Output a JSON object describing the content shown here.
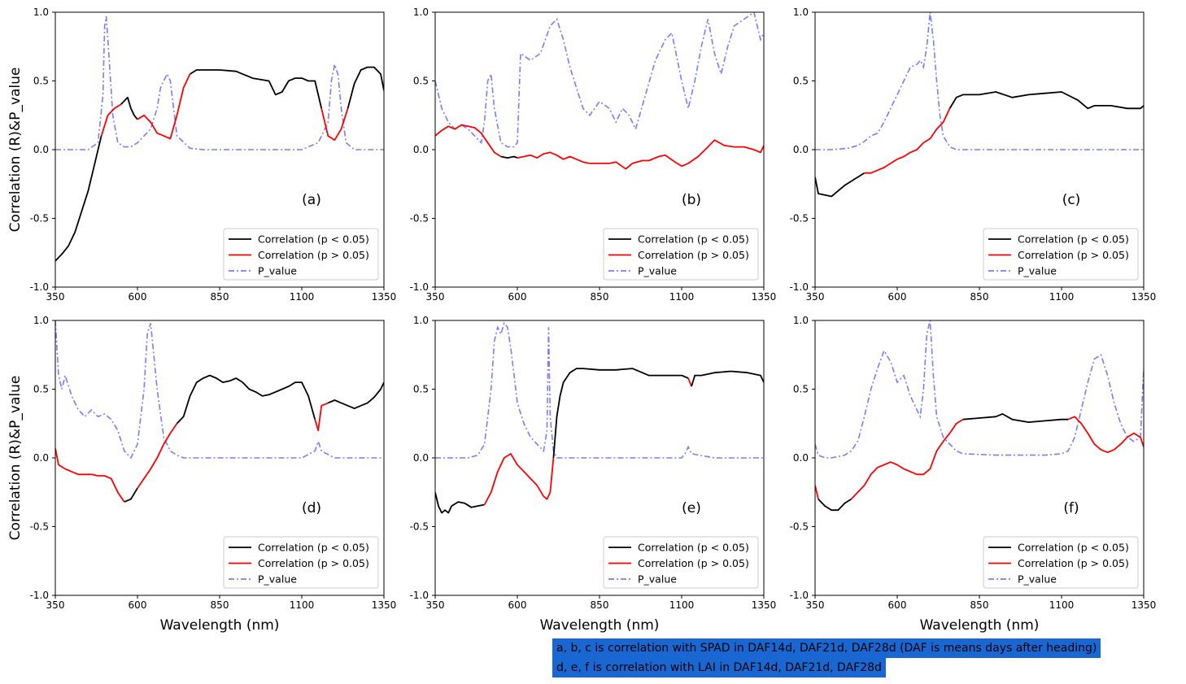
{
  "note": {
    "line1": "a, b, c is correlation with SPAD in DAF14d, DAF21d, DAF28d (DAF is means days after heading)",
    "line2": "d, e, f is correlation with LAI in DAF14d, DAF21d, DAF28d"
  },
  "axes": {
    "ylabel": "Correlation (R)&P_value",
    "xlabel": "Wavelength (nm)",
    "xticks": [
      "350",
      "600",
      "850",
      "1100",
      "1350"
    ],
    "yticks": [
      "1.0",
      "0.5",
      "0.0",
      "-0.5",
      "-1.0"
    ]
  },
  "legend": {
    "sig": "Correlation (p < 0.05)",
    "nonsig": "Correlation (p > 0.05)",
    "pvalue": "P_value"
  },
  "colors": {
    "sig": "#000000",
    "nonsig": "#ff0000",
    "pvalue": "#7b7bff",
    "note_bg": "#1967d2"
  },
  "chart_data": [
    {
      "type": "line",
      "panel": "(a)",
      "xlim": [
        350,
        1350
      ],
      "ylim": [
        -1.0,
        1.0
      ],
      "correlation": {
        "x": [
          350,
          370,
          390,
          410,
          430,
          450,
          470,
          490,
          510,
          530,
          550,
          570,
          580,
          590,
          600,
          620,
          640,
          660,
          680,
          700,
          720,
          740,
          760,
          780,
          800,
          850,
          900,
          950,
          1000,
          1020,
          1040,
          1060,
          1080,
          1100,
          1120,
          1140,
          1160,
          1180,
          1200,
          1220,
          1240,
          1260,
          1280,
          1300,
          1320,
          1340,
          1350
        ],
        "y": [
          -0.81,
          -0.76,
          -0.7,
          -0.6,
          -0.45,
          -0.3,
          -0.1,
          0.1,
          0.25,
          0.3,
          0.33,
          0.38,
          0.3,
          0.25,
          0.22,
          0.25,
          0.2,
          0.12,
          0.1,
          0.08,
          0.25,
          0.45,
          0.55,
          0.58,
          0.58,
          0.58,
          0.57,
          0.52,
          0.5,
          0.4,
          0.42,
          0.5,
          0.52,
          0.52,
          0.5,
          0.5,
          0.3,
          0.1,
          0.07,
          0.15,
          0.3,
          0.48,
          0.58,
          0.6,
          0.6,
          0.55,
          0.43
        ]
      },
      "p_value": {
        "x": [
          350,
          400,
          450,
          480,
          495,
          500,
          505,
          510,
          525,
          540,
          560,
          580,
          600,
          620,
          640,
          660,
          670,
          680,
          690,
          700,
          720,
          760,
          800,
          900,
          1000,
          1100,
          1150,
          1180,
          1190,
          1200,
          1210,
          1220,
          1235,
          1260,
          1300,
          1350
        ],
        "y": [
          0.0,
          0.0,
          0.0,
          0.05,
          0.4,
          0.9,
          0.97,
          0.8,
          0.25,
          0.05,
          0.02,
          0.02,
          0.05,
          0.1,
          0.15,
          0.3,
          0.45,
          0.5,
          0.55,
          0.5,
          0.1,
          0.01,
          0.0,
          0.0,
          0.0,
          0.0,
          0.05,
          0.2,
          0.5,
          0.62,
          0.55,
          0.3,
          0.05,
          0.0,
          0.0,
          0.0
        ]
      }
    },
    {
      "type": "line",
      "panel": "(b)",
      "xlim": [
        350,
        1350
      ],
      "ylim": [
        -1.0,
        1.0
      ],
      "correlation": {
        "x": [
          350,
          370,
          390,
          410,
          430,
          450,
          470,
          490,
          510,
          530,
          550,
          570,
          590,
          600,
          620,
          640,
          660,
          680,
          700,
          720,
          740,
          760,
          780,
          800,
          820,
          850,
          880,
          900,
          930,
          950,
          980,
          1000,
          1030,
          1050,
          1080,
          1100,
          1120,
          1150,
          1180,
          1200,
          1230,
          1260,
          1290,
          1320,
          1340,
          1350
        ],
        "y": [
          0.1,
          0.14,
          0.17,
          0.15,
          0.18,
          0.17,
          0.16,
          0.12,
          0.05,
          -0.02,
          -0.05,
          -0.06,
          -0.05,
          -0.06,
          -0.05,
          -0.04,
          -0.06,
          -0.03,
          -0.02,
          -0.04,
          -0.07,
          -0.05,
          -0.07,
          -0.09,
          -0.1,
          -0.1,
          -0.1,
          -0.09,
          -0.14,
          -0.1,
          -0.08,
          -0.08,
          -0.05,
          -0.04,
          -0.09,
          -0.12,
          -0.1,
          -0.05,
          0.02,
          0.07,
          0.03,
          0.02,
          0.02,
          0.0,
          -0.02,
          0.03
        ]
      },
      "p_value": {
        "x": [
          350,
          370,
          390,
          410,
          430,
          450,
          470,
          490,
          500,
          510,
          520,
          530,
          550,
          570,
          590,
          600,
          610,
          640,
          670,
          700,
          720,
          740,
          760,
          780,
          800,
          820,
          850,
          880,
          900,
          920,
          940,
          960,
          990,
          1020,
          1050,
          1070,
          1100,
          1120,
          1140,
          1160,
          1180,
          1200,
          1220,
          1240,
          1260,
          1290,
          1320,
          1340,
          1350
        ],
        "y": [
          0.5,
          0.3,
          0.2,
          0.15,
          0.18,
          0.15,
          0.1,
          0.05,
          0.2,
          0.5,
          0.55,
          0.3,
          0.05,
          0.02,
          0.02,
          0.05,
          0.7,
          0.65,
          0.7,
          0.9,
          0.95,
          0.8,
          0.6,
          0.45,
          0.3,
          0.25,
          0.35,
          0.3,
          0.2,
          0.3,
          0.25,
          0.15,
          0.4,
          0.65,
          0.8,
          0.85,
          0.5,
          0.3,
          0.5,
          0.75,
          0.95,
          0.7,
          0.55,
          0.75,
          0.9,
          0.95,
          1.0,
          0.8,
          0.85
        ]
      }
    },
    {
      "type": "line",
      "panel": "(c)",
      "xlim": [
        350,
        1350
      ],
      "ylim": [
        -1.0,
        1.0
      ],
      "correlation": {
        "x": [
          350,
          360,
          380,
          400,
          420,
          440,
          460,
          480,
          500,
          520,
          540,
          560,
          580,
          600,
          620,
          640,
          660,
          680,
          700,
          720,
          740,
          760,
          780,
          800,
          850,
          900,
          950,
          1000,
          1050,
          1100,
          1150,
          1180,
          1200,
          1250,
          1300,
          1340,
          1350
        ],
        "y": [
          -0.2,
          -0.32,
          -0.33,
          -0.34,
          -0.3,
          -0.26,
          -0.23,
          -0.2,
          -0.17,
          -0.17,
          -0.15,
          -0.13,
          -0.1,
          -0.07,
          -0.05,
          -0.02,
          -0.0,
          0.05,
          0.08,
          0.15,
          0.2,
          0.3,
          0.38,
          0.4,
          0.4,
          0.42,
          0.38,
          0.4,
          0.41,
          0.42,
          0.36,
          0.3,
          0.32,
          0.32,
          0.3,
          0.3,
          0.32
        ]
      },
      "p_value": {
        "x": [
          350,
          400,
          450,
          480,
          500,
          520,
          540,
          560,
          580,
          600,
          620,
          640,
          660,
          670,
          680,
          690,
          700,
          710,
          720,
          730,
          740,
          760,
          780,
          800,
          850,
          900,
          1000,
          1100,
          1200,
          1300,
          1350
        ],
        "y": [
          0.0,
          0.0,
          0.01,
          0.03,
          0.06,
          0.1,
          0.12,
          0.2,
          0.3,
          0.4,
          0.5,
          0.6,
          0.62,
          0.65,
          0.6,
          0.75,
          1.0,
          0.8,
          0.5,
          0.25,
          0.1,
          0.02,
          0.0,
          0.0,
          0.0,
          0.0,
          0.0,
          0.0,
          0.0,
          0.0,
          0.0
        ]
      }
    },
    {
      "type": "line",
      "panel": "(d)",
      "xlim": [
        350,
        1350
      ],
      "ylim": [
        -1.0,
        1.0
      ],
      "correlation": {
        "x": [
          350,
          360,
          380,
          400,
          420,
          440,
          460,
          480,
          500,
          520,
          540,
          560,
          580,
          600,
          620,
          640,
          660,
          680,
          700,
          720,
          740,
          760,
          780,
          800,
          820,
          840,
          860,
          880,
          900,
          920,
          940,
          960,
          980,
          1000,
          1020,
          1040,
          1060,
          1080,
          1100,
          1120,
          1140,
          1150,
          1160,
          1180,
          1200,
          1220,
          1240,
          1260,
          1280,
          1300,
          1320,
          1340,
          1350
        ],
        "y": [
          0.07,
          -0.05,
          -0.08,
          -0.1,
          -0.12,
          -0.12,
          -0.12,
          -0.13,
          -0.13,
          -0.15,
          -0.25,
          -0.32,
          -0.3,
          -0.22,
          -0.15,
          -0.08,
          -0.0,
          0.1,
          0.18,
          0.25,
          0.3,
          0.45,
          0.55,
          0.58,
          0.6,
          0.58,
          0.55,
          0.56,
          0.58,
          0.55,
          0.5,
          0.48,
          0.45,
          0.46,
          0.48,
          0.5,
          0.52,
          0.55,
          0.55,
          0.45,
          0.28,
          0.2,
          0.38,
          0.4,
          0.42,
          0.4,
          0.38,
          0.36,
          0.38,
          0.4,
          0.44,
          0.5,
          0.55
        ]
      },
      "p_value": {
        "x": [
          350,
          360,
          370,
          380,
          400,
          420,
          440,
          460,
          480,
          500,
          520,
          540,
          560,
          580,
          600,
          620,
          630,
          640,
          660,
          680,
          700,
          720,
          740,
          760,
          800,
          900,
          1000,
          1100,
          1140,
          1150,
          1160,
          1200,
          1300,
          1350
        ],
        "y": [
          1.0,
          0.6,
          0.5,
          0.6,
          0.45,
          0.35,
          0.3,
          0.35,
          0.3,
          0.32,
          0.28,
          0.2,
          0.05,
          0.0,
          0.1,
          0.5,
          0.9,
          0.98,
          0.5,
          0.15,
          0.05,
          0.02,
          0.0,
          0.0,
          0.0,
          0.0,
          0.0,
          0.0,
          0.05,
          0.12,
          0.05,
          0.0,
          0.0,
          0.0
        ]
      }
    },
    {
      "type": "line",
      "panel": "(e)",
      "xlim": [
        350,
        1350
      ],
      "ylim": [
        -1.0,
        1.0
      ],
      "correlation": {
        "x": [
          350,
          360,
          370,
          380,
          390,
          400,
          420,
          440,
          460,
          480,
          500,
          520,
          540,
          560,
          580,
          600,
          620,
          640,
          660,
          680,
          690,
          700,
          710,
          720,
          730,
          740,
          760,
          780,
          800,
          850,
          900,
          950,
          1000,
          1050,
          1100,
          1120,
          1130,
          1140,
          1160,
          1200,
          1250,
          1300,
          1340,
          1350
        ],
        "y": [
          -0.25,
          -0.35,
          -0.4,
          -0.38,
          -0.4,
          -0.35,
          -0.32,
          -0.33,
          -0.36,
          -0.35,
          -0.34,
          -0.25,
          -0.1,
          0.0,
          0.03,
          -0.05,
          -0.1,
          -0.15,
          -0.2,
          -0.28,
          -0.3,
          -0.25,
          0.0,
          0.3,
          0.45,
          0.55,
          0.62,
          0.65,
          0.65,
          0.64,
          0.64,
          0.65,
          0.6,
          0.6,
          0.6,
          0.58,
          0.52,
          0.6,
          0.6,
          0.62,
          0.63,
          0.62,
          0.6,
          0.55
        ]
      },
      "p_value": {
        "x": [
          350,
          400,
          450,
          480,
          500,
          520,
          530,
          540,
          550,
          560,
          570,
          580,
          590,
          600,
          620,
          640,
          660,
          680,
          690,
          695,
          700,
          710,
          720,
          740,
          800,
          900,
          1000,
          1100,
          1110,
          1120,
          1130,
          1200,
          1300,
          1350
        ],
        "y": [
          0.0,
          0.0,
          0.0,
          0.02,
          0.1,
          0.5,
          0.85,
          0.95,
          0.9,
          0.98,
          0.95,
          0.8,
          0.6,
          0.4,
          0.25,
          0.15,
          0.1,
          0.05,
          0.2,
          0.95,
          0.3,
          0.05,
          0.0,
          0.0,
          0.0,
          0.0,
          0.0,
          0.0,
          0.03,
          0.08,
          0.03,
          0.0,
          0.0,
          0.0
        ]
      }
    },
    {
      "type": "line",
      "panel": "(f)",
      "xlim": [
        350,
        1350
      ],
      "ylim": [
        -1.0,
        1.0
      ],
      "correlation": {
        "x": [
          350,
          360,
          380,
          400,
          420,
          440,
          460,
          480,
          500,
          520,
          540,
          560,
          580,
          600,
          620,
          640,
          660,
          680,
          700,
          720,
          740,
          760,
          780,
          800,
          850,
          900,
          920,
          950,
          1000,
          1050,
          1100,
          1120,
          1140,
          1160,
          1180,
          1200,
          1220,
          1240,
          1260,
          1280,
          1300,
          1320,
          1340,
          1350
        ],
        "y": [
          -0.2,
          -0.3,
          -0.35,
          -0.38,
          -0.38,
          -0.33,
          -0.3,
          -0.25,
          -0.2,
          -0.12,
          -0.07,
          -0.05,
          -0.03,
          -0.05,
          -0.08,
          -0.1,
          -0.12,
          -0.12,
          -0.08,
          0.05,
          0.12,
          0.18,
          0.25,
          0.28,
          0.29,
          0.3,
          0.32,
          0.28,
          0.26,
          0.27,
          0.28,
          0.28,
          0.3,
          0.25,
          0.18,
          0.1,
          0.06,
          0.04,
          0.06,
          0.1,
          0.15,
          0.18,
          0.15,
          0.08
        ]
      },
      "p_value": {
        "x": [
          350,
          360,
          380,
          400,
          420,
          440,
          460,
          480,
          500,
          520,
          540,
          560,
          580,
          600,
          620,
          640,
          660,
          670,
          680,
          690,
          700,
          710,
          720,
          740,
          760,
          780,
          800,
          900,
          1000,
          1050,
          1100,
          1120,
          1140,
          1160,
          1180,
          1200,
          1220,
          1240,
          1260,
          1280,
          1300,
          1320,
          1340,
          1350
        ],
        "y": [
          0.1,
          0.02,
          0.0,
          0.0,
          0.01,
          0.02,
          0.05,
          0.12,
          0.3,
          0.5,
          0.65,
          0.78,
          0.7,
          0.55,
          0.6,
          0.45,
          0.35,
          0.3,
          0.5,
          0.9,
          1.0,
          0.6,
          0.3,
          0.15,
          0.1,
          0.05,
          0.03,
          0.02,
          0.02,
          0.02,
          0.03,
          0.05,
          0.15,
          0.35,
          0.55,
          0.72,
          0.75,
          0.6,
          0.4,
          0.25,
          0.15,
          0.12,
          0.15,
          0.65
        ]
      }
    }
  ]
}
